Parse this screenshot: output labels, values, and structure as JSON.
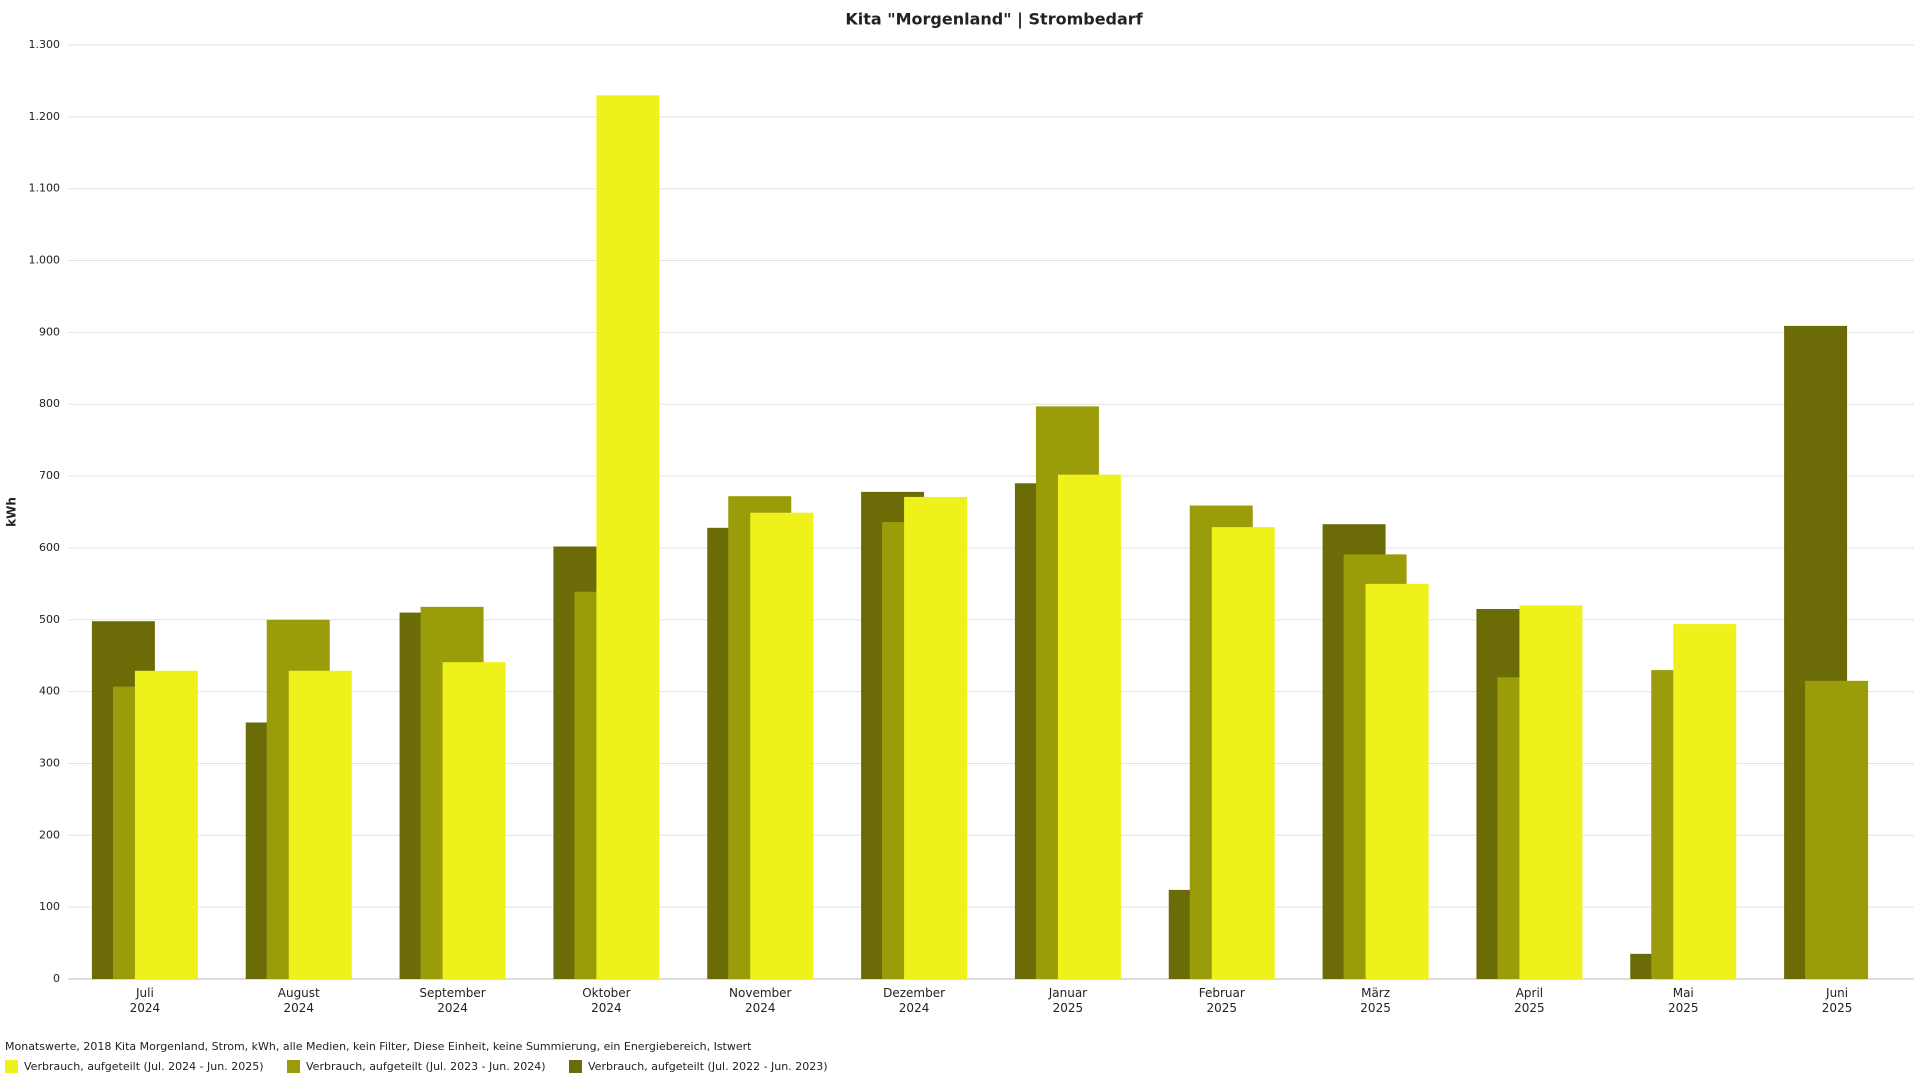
{
  "chart_data": {
    "type": "bar",
    "title": "Kita \"Morgenland\" | Strombedarf",
    "y_label": "kWh",
    "categories": [
      [
        "Juli",
        "2024"
      ],
      [
        "August",
        "2024"
      ],
      [
        "September",
        "2024"
      ],
      [
        "Oktober",
        "2024"
      ],
      [
        "November",
        "2024"
      ],
      [
        "Dezember",
        "2024"
      ],
      [
        "Januar",
        "2025"
      ],
      [
        "Februar",
        "2025"
      ],
      [
        "März",
        "2025"
      ],
      [
        "April",
        "2025"
      ],
      [
        "Mai",
        "2025"
      ],
      [
        "Juni",
        "2025"
      ]
    ],
    "series": [
      {
        "name": "Verbrauch, aufgeteilt (Jul. 2024 - Jun. 2025)",
        "color": "#eef21a",
        "values": [
          429,
          429,
          441,
          1230,
          649,
          671,
          702,
          629,
          550,
          520,
          494,
          null
        ]
      },
      {
        "name": "Verbrauch, aufgeteilt (Jul. 2023 - Jun. 2024)",
        "color": "#9a9c0a",
        "values": [
          407,
          500,
          518,
          539,
          672,
          636,
          797,
          659,
          591,
          420,
          430,
          415
        ]
      },
      {
        "name": "Verbrauch, aufgeteilt (Jul. 2022 - Jun. 2023)",
        "color": "#6b6b08",
        "values": [
          498,
          357,
          510,
          602,
          628,
          678,
          690,
          124,
          633,
          515,
          35,
          909
        ]
      }
    ],
    "ylim": [
      0,
      1300
    ],
    "yticks": [
      0,
      100,
      200,
      300,
      400,
      500,
      600,
      700,
      800,
      900,
      {
        "value": 1000,
        "label": "1.000"
      },
      {
        "value": 1100,
        "label": "1.100"
      },
      {
        "value": 1200,
        "label": "1.200"
      },
      {
        "value": 1300,
        "label": "1.300"
      }
    ],
    "grid": true,
    "footnote": "Monatswerte, 2018 Kita Morgenland, Strom, kWh, alle Medien, kein Filter, Diese Einheit, keine Summierung, ein Energiebereich, Istwert",
    "legend": "bottom-left"
  }
}
